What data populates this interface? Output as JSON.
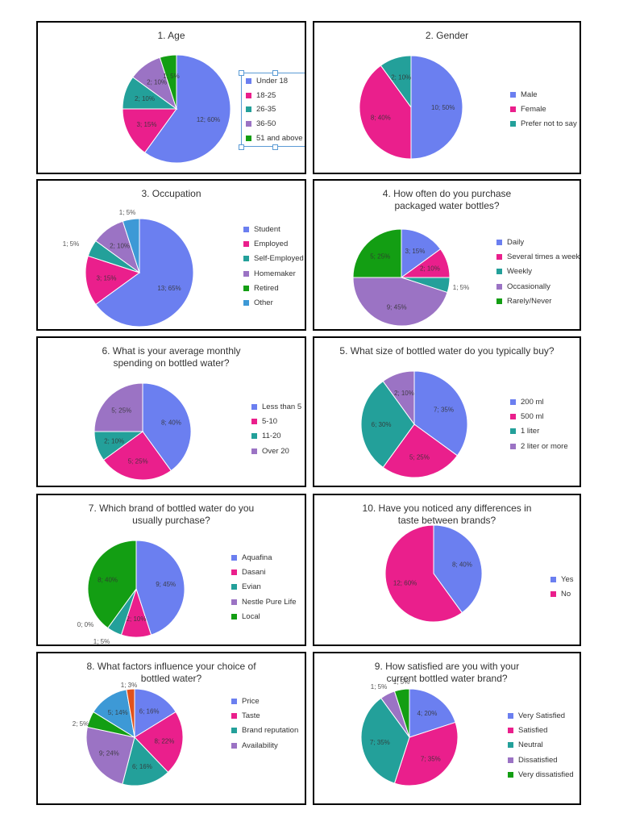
{
  "colors": {
    "blue": "#6b7ff0",
    "pink": "#ea1f8c",
    "teal": "#23a09a",
    "purple": "#9b73c4",
    "green": "#139e13",
    "skyblue": "#3d99d6",
    "orange": "#e0521d"
  },
  "chart_data": [
    {
      "type": "pie",
      "title": "1. Age",
      "slices": [
        {
          "label": "Under 18",
          "value": 12,
          "pct": "60%",
          "text": "12; 60%",
          "color": "blue"
        },
        {
          "label": "18-25",
          "value": 3,
          "pct": "15%",
          "text": "3; 15%",
          "color": "pink"
        },
        {
          "label": "26-35",
          "value": 2,
          "pct": "10%",
          "text": "2; 10%",
          "color": "teal"
        },
        {
          "label": "36-50",
          "value": 2,
          "pct": "10%",
          "text": "2; 10%",
          "color": "purple"
        },
        {
          "label": "51 and above",
          "value": 1,
          "pct": "5%",
          "text": "1; 5%",
          "color": "green"
        }
      ]
    },
    {
      "type": "pie",
      "title": "2. Gender",
      "slices": [
        {
          "label": "Male",
          "value": 10,
          "pct": "50%",
          "text": "10; 50%",
          "color": "blue"
        },
        {
          "label": "Female",
          "value": 8,
          "pct": "40%",
          "text": "8; 40%",
          "color": "pink"
        },
        {
          "label": "Prefer not to say",
          "value": 2,
          "pct": "10%",
          "text": "2; 10%",
          "color": "teal"
        }
      ]
    },
    {
      "type": "pie",
      "title": "3. Occupation",
      "slices": [
        {
          "label": "Student",
          "value": 13,
          "pct": "65%",
          "text": "13; 65%",
          "color": "blue"
        },
        {
          "label": "Employed",
          "value": 3,
          "pct": "15%",
          "text": "3; 15%",
          "color": "pink"
        },
        {
          "label": "Self-Employed",
          "value": 1,
          "pct": "5%",
          "text": "1; 5%",
          "color": "teal"
        },
        {
          "label": "Homemaker",
          "value": 2,
          "pct": "10%",
          "text": "2; 10%",
          "color": "purple"
        },
        {
          "label": "Retired",
          "value": 0,
          "pct": "0%",
          "text": "",
          "color": "green"
        },
        {
          "label": "Other",
          "value": 1,
          "pct": "5%",
          "text": "1; 5%",
          "color": "skyblue"
        }
      ]
    },
    {
      "type": "pie",
      "title": "4. How often do you purchase packaged water bottles?",
      "slices": [
        {
          "label": "Daily",
          "value": 3,
          "pct": "15%",
          "text": "3; 15%",
          "color": "blue"
        },
        {
          "label": "Several times a week",
          "value": 2,
          "pct": "10%",
          "text": "2; 10%",
          "color": "pink"
        },
        {
          "label": "Weekly",
          "value": 1,
          "pct": "5%",
          "text": "1; 5%",
          "color": "teal"
        },
        {
          "label": "Occasionally",
          "value": 9,
          "pct": "45%",
          "text": "9; 45%",
          "color": "purple"
        },
        {
          "label": "Rarely/Never",
          "value": 5,
          "pct": "25%",
          "text": "5; 25%",
          "color": "green"
        }
      ]
    },
    {
      "type": "pie",
      "title": "6. What is your average monthly spending on bottled water?",
      "slices": [
        {
          "label": "Less than 5",
          "value": 8,
          "pct": "40%",
          "text": "8; 40%",
          "color": "blue"
        },
        {
          "label": "5-10",
          "value": 5,
          "pct": "25%",
          "text": "5; 25%",
          "color": "pink"
        },
        {
          "label": "11-20",
          "value": 2,
          "pct": "10%",
          "text": "2; 10%",
          "color": "teal"
        },
        {
          "label": "Over 20",
          "value": 5,
          "pct": "25%",
          "text": "5; 25%",
          "color": "purple"
        }
      ]
    },
    {
      "type": "pie",
      "title": "5. What size of bottled water do you typically buy?",
      "slices": [
        {
          "label": "200 ml",
          "value": 7,
          "pct": "35%",
          "text": "7; 35%",
          "color": "blue"
        },
        {
          "label": "500 ml",
          "value": 5,
          "pct": "25%",
          "text": "5; 25%",
          "color": "pink"
        },
        {
          "label": "1 liter",
          "value": 6,
          "pct": "30%",
          "text": "6; 30%",
          "color": "teal"
        },
        {
          "label": "2 liter or more",
          "value": 2,
          "pct": "10%",
          "text": "2; 10%",
          "color": "purple"
        }
      ]
    },
    {
      "type": "pie",
      "title": "7. Which brand of bottled water do you usually purchase?",
      "slices": [
        {
          "label": "Aquafina",
          "value": 9,
          "pct": "45%",
          "text": "9; 45%",
          "color": "blue"
        },
        {
          "label": "Dasani",
          "value": 2,
          "pct": "10%",
          "text": "2; 10%",
          "color": "pink"
        },
        {
          "label": "Evian",
          "value": 1,
          "pct": "5%",
          "text": "1; 5%",
          "color": "teal"
        },
        {
          "label": "Nestle Pure Life",
          "value": 0,
          "pct": "0%",
          "text": "0; 0%",
          "color": "purple"
        },
        {
          "label": "Local",
          "value": 8,
          "pct": "40%",
          "text": "8; 40%",
          "color": "green"
        }
      ]
    },
    {
      "type": "pie",
      "title": "10. Have you noticed any differences in taste between brands?",
      "slices": [
        {
          "label": "Yes",
          "value": 8,
          "pct": "40%",
          "text": "8; 40%",
          "color": "blue"
        },
        {
          "label": "No",
          "value": 12,
          "pct": "60%",
          "text": "12; 60%",
          "color": "pink"
        }
      ]
    },
    {
      "type": "pie",
      "title": "8. What factors influence your choice of bottled water?",
      "slices": [
        {
          "label": "Price",
          "value": 6,
          "pct": "16%",
          "text": "6; 16%",
          "color": "blue"
        },
        {
          "label": "Taste",
          "value": 8,
          "pct": "22%",
          "text": "8; 22%",
          "color": "pink"
        },
        {
          "label": "Brand reputation",
          "value": 6,
          "pct": "16%",
          "text": "6; 16%",
          "color": "teal"
        },
        {
          "label": "Availability",
          "value": 9,
          "pct": "24%",
          "text": "9; 24%",
          "color": "purple"
        },
        {
          "label": "",
          "value": 2,
          "pct": "5%",
          "text": "2; 5%",
          "color": "green"
        },
        {
          "label": "",
          "value": 5,
          "pct": "14%",
          "text": "5; 14%",
          "color": "skyblue"
        },
        {
          "label": "",
          "value": 1,
          "pct": "3%",
          "text": "1; 3%",
          "color": "orange"
        }
      ]
    },
    {
      "type": "pie",
      "title": "9. How satisfied are you with your current bottled water brand?",
      "slices": [
        {
          "label": "Very Satisfied",
          "value": 4,
          "pct": "20%",
          "text": "4; 20%",
          "color": "blue"
        },
        {
          "label": "Satisfied",
          "value": 7,
          "pct": "35%",
          "text": "7; 35%",
          "color": "pink"
        },
        {
          "label": "Neutral",
          "value": 7,
          "pct": "35%",
          "text": "7; 35%",
          "color": "teal"
        },
        {
          "label": "Dissatisfied",
          "value": 1,
          "pct": "5%",
          "text": "1; 5%",
          "color": "purple"
        },
        {
          "label": "Very dissatisfied",
          "value": 1,
          "pct": "5%",
          "text": "1; 5%",
          "color": "green"
        }
      ]
    }
  ]
}
